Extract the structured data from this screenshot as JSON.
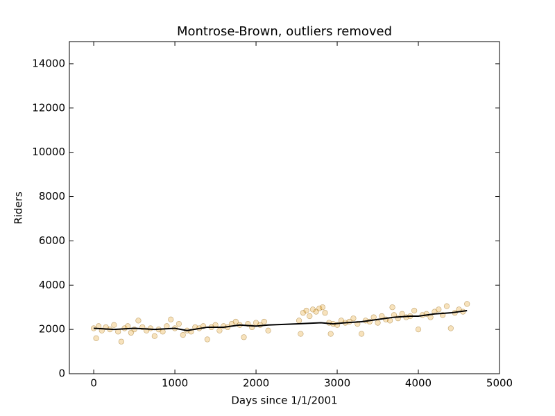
{
  "chart_data": {
    "type": "scatter",
    "title": "Montrose-Brown, outliers removed",
    "xlabel": "Days since 1/1/2001",
    "ylabel": "Riders",
    "xlim": [
      -300,
      5000
    ],
    "xticks": [
      0,
      1000,
      2000,
      3000,
      4000,
      5000
    ],
    "ylim": [
      0,
      15000
    ],
    "yticks": [
      0,
      2000,
      4000,
      6000,
      8000,
      10000,
      12000,
      14000
    ],
    "series": [
      {
        "type": "scatter",
        "color": "#e6a020",
        "x": [
          0,
          30,
          60,
          100,
          150,
          200,
          250,
          300,
          340,
          380,
          420,
          460,
          500,
          550,
          600,
          650,
          700,
          750,
          800,
          850,
          900,
          950,
          1000,
          1050,
          1100,
          1150,
          1200,
          1250,
          1300,
          1350,
          1400,
          1450,
          1500,
          1550,
          1600,
          1650,
          1700,
          1750,
          1800,
          1850,
          1900,
          1950,
          2000,
          2050,
          2100,
          2150,
          2530,
          2550,
          2580,
          2620,
          2660,
          2700,
          2740,
          2780,
          2820,
          2850,
          2900,
          2920,
          2950,
          3000,
          3050,
          3100,
          3150,
          3200,
          3250,
          3300,
          3350,
          3400,
          3450,
          3500,
          3550,
          3600,
          3650,
          3680,
          3700,
          3750,
          3800,
          3850,
          3900,
          3950,
          4000,
          4050,
          4100,
          4150,
          4200,
          4250,
          4300,
          4350,
          4400,
          4450,
          4500,
          4550,
          4600
        ],
        "values": [
          2050,
          1600,
          2150,
          1950,
          2100,
          2000,
          2200,
          1900,
          1450,
          2050,
          2150,
          1850,
          2000,
          2400,
          2100,
          1950,
          2050,
          1700,
          2000,
          1900,
          2150,
          2450,
          2050,
          2250,
          1750,
          1950,
          1900,
          2100,
          2050,
          2150,
          1550,
          2100,
          2200,
          1950,
          2150,
          2100,
          2250,
          2350,
          2200,
          1650,
          2250,
          2100,
          2300,
          2200,
          2350,
          1950,
          2400,
          1800,
          2750,
          2850,
          2600,
          2900,
          2800,
          2950,
          3000,
          2750,
          2300,
          1800,
          2250,
          2200,
          2400,
          2300,
          2350,
          2500,
          2250,
          1800,
          2400,
          2350,
          2550,
          2300,
          2600,
          2450,
          2400,
          3000,
          2650,
          2500,
          2700,
          2550,
          2600,
          2850,
          2000,
          2650,
          2700,
          2550,
          2800,
          2900,
          2650,
          3050,
          2050,
          2750,
          2900,
          2800,
          3150
        ]
      },
      {
        "type": "line",
        "color": "#000000",
        "x": [
          0,
          250,
          500,
          750,
          1000,
          1150,
          1400,
          1600,
          1800,
          2000,
          2150,
          2500,
          2800,
          2950,
          3100,
          3300,
          3500,
          3700,
          3900,
          4000,
          4200,
          4400,
          4600
        ],
        "values": [
          2050,
          2000,
          2050,
          2000,
          2050,
          1950,
          2100,
          2100,
          2200,
          2150,
          2200,
          2250,
          2300,
          2250,
          2300,
          2350,
          2450,
          2550,
          2600,
          2600,
          2700,
          2750,
          2850
        ]
      }
    ]
  }
}
